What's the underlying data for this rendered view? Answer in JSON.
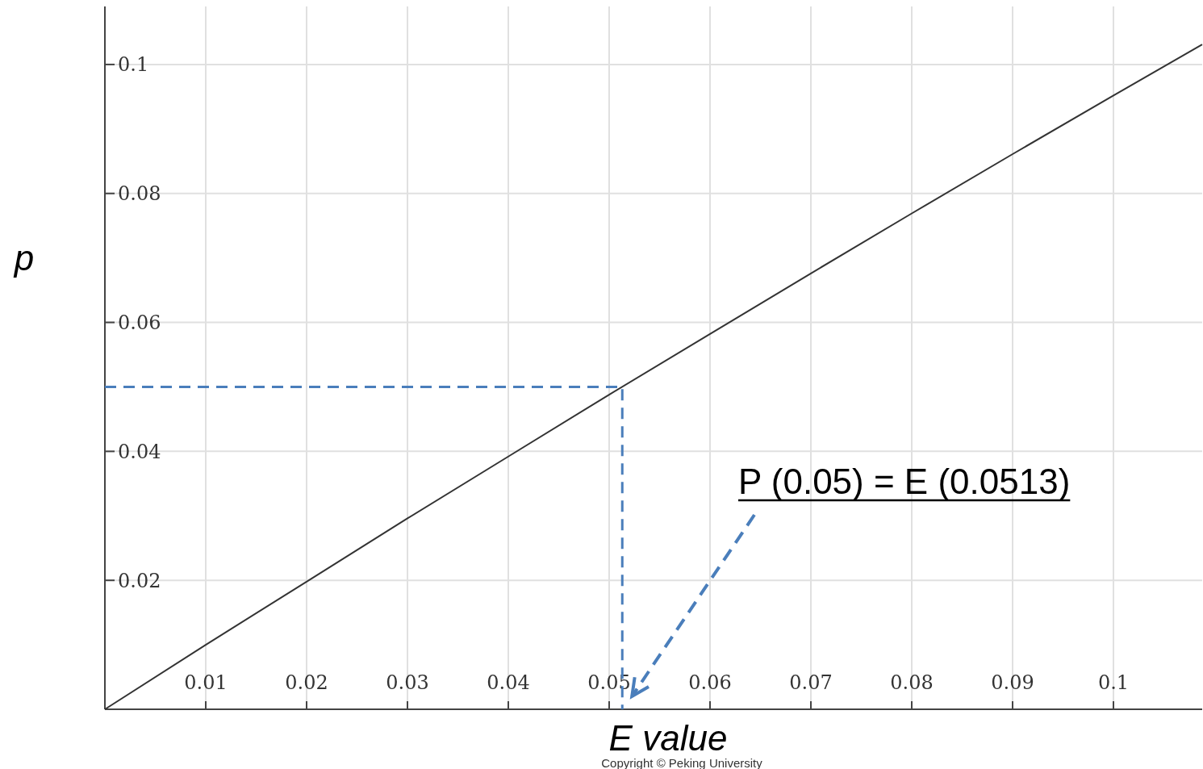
{
  "chart_data": {
    "type": "line",
    "xlabel": "E value",
    "ylabel": "p",
    "xlim": [
      0,
      0.1088
    ],
    "ylim": [
      0,
      0.109
    ],
    "xticks": [
      0.01,
      0.02,
      0.03,
      0.04,
      0.05,
      0.06,
      0.07,
      0.08,
      0.09,
      0.1
    ],
    "yticks": [
      0.02,
      0.04,
      0.06,
      0.08,
      0.1
    ],
    "grid": true,
    "series": [
      {
        "color": "#333333",
        "x": [
          0,
          0.01,
          0.02,
          0.03,
          0.04,
          0.05,
          0.06,
          0.07,
          0.08,
          0.09,
          0.1,
          0.1088
        ],
        "values": [
          0,
          0.01,
          0.0198,
          0.0296,
          0.0392,
          0.0488,
          0.0582,
          0.0676,
          0.0769,
          0.0861,
          0.0952,
          0.1031
        ]
      },
      {
        "color": "#4a7ebb",
        "line_style": "dashed",
        "x": [
          0,
          0.0513,
          0.0513
        ],
        "values": [
          0.05,
          0.05,
          0
        ]
      }
    ],
    "annotations": [
      "P (0.05) = E (0.0513)",
      "Copyright © Peking University"
    ]
  }
}
